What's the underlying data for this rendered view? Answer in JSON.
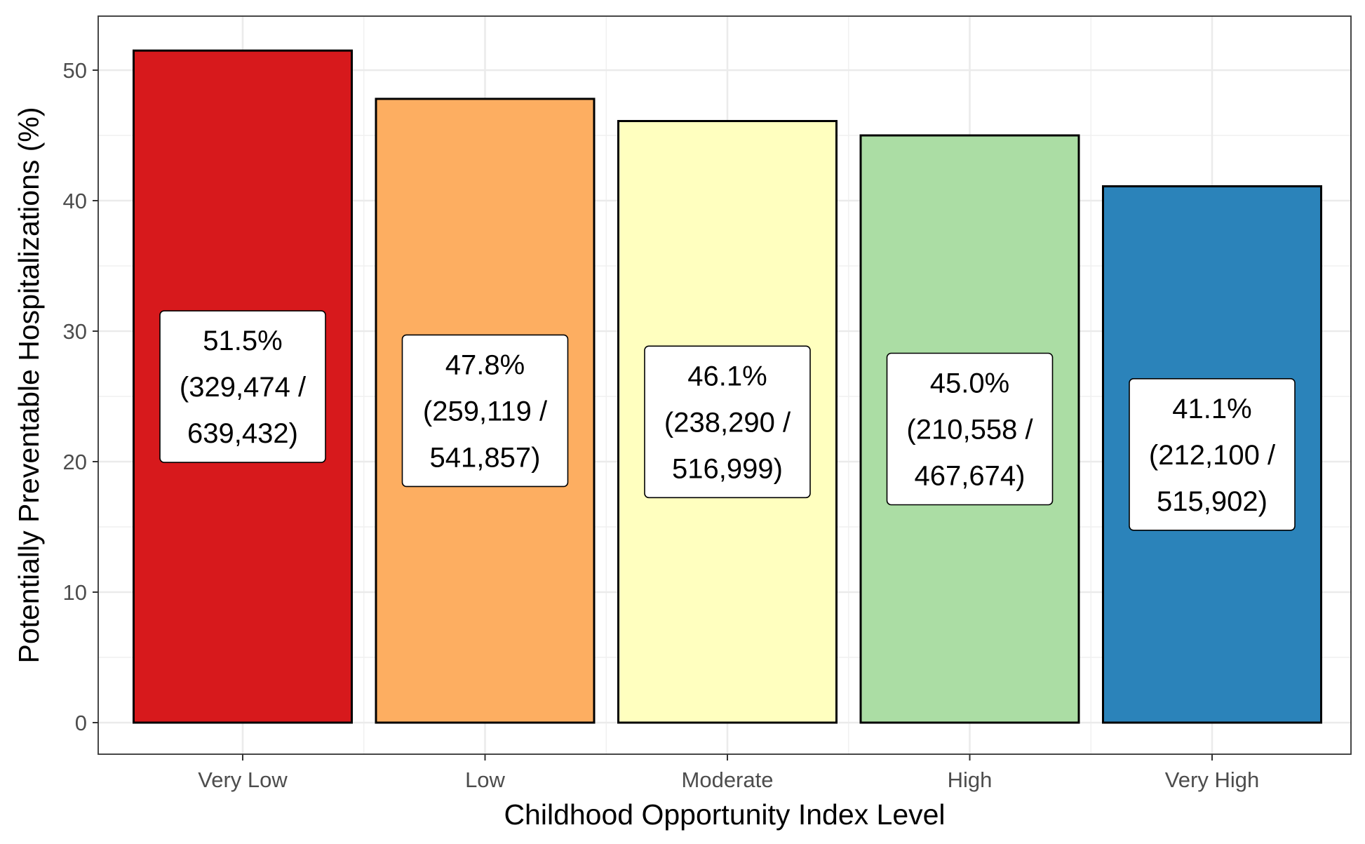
{
  "chart_data": {
    "type": "bar",
    "title": "",
    "xlabel": "Childhood Opportunity Index Level",
    "ylabel": "Potentially Preventable Hospitalizations (%)",
    "categories": [
      "Very Low",
      "Low",
      "Moderate",
      "High",
      "Very High"
    ],
    "values": [
      51.5,
      47.8,
      46.1,
      45.0,
      41.1
    ],
    "bar_colors": [
      "#d7191c",
      "#fdae61",
      "#ffffbf",
      "#abdda4",
      "#2b83ba"
    ],
    "labels": [
      [
        "51.5%",
        "(329,474 /",
        "639,432)"
      ],
      [
        "47.8%",
        "(259,119 /",
        "541,857)"
      ],
      [
        "46.1%",
        "(238,290 /",
        "516,999)"
      ],
      [
        "45.0%",
        "(210,558 /",
        "467,674)"
      ],
      [
        "41.1%",
        "(212,100 /",
        "515,902)"
      ]
    ],
    "ylim": [
      0,
      52
    ],
    "yticks": [
      0,
      10,
      20,
      30,
      40,
      50
    ],
    "ytick_labels": [
      "0",
      "10",
      "20",
      "30",
      "40",
      "50"
    ],
    "grid": true,
    "legend": "none"
  }
}
